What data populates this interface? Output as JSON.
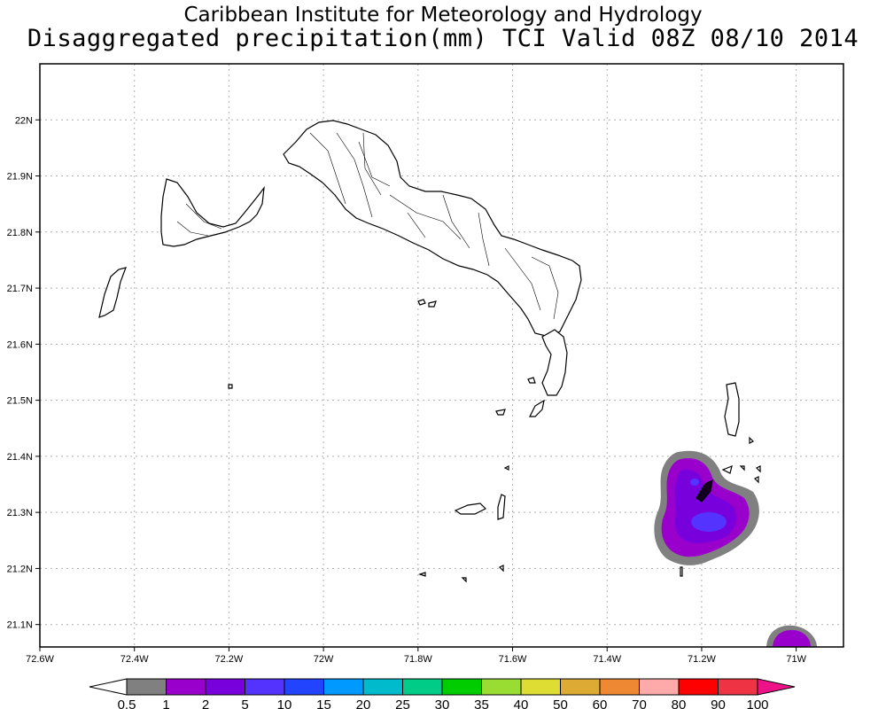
{
  "title": "Caribbean Institute for Meteorology and Hydrology",
  "subtitle": "Disaggregated precipitation(mm) TCI Valid 08Z 08/10 2014",
  "axes": {
    "lon_range": [
      -72.6,
      -70.9
    ],
    "lat_range": [
      21.06,
      22.1
    ],
    "x_ticks": [
      "72.6W",
      "72.4W",
      "72.2W",
      "72W",
      "71.8W",
      "71.6W",
      "71.4W",
      "71.2W",
      "71W"
    ],
    "y_ticks": [
      "21.1N",
      "21.2N",
      "21.3N",
      "21.4N",
      "21.5N",
      "21.6N",
      "21.7N",
      "21.8N",
      "21.9N",
      "22N"
    ],
    "grid": true
  },
  "colorbar": {
    "labels": [
      "0.5",
      "1",
      "2",
      "5",
      "10",
      "15",
      "20",
      "25",
      "30",
      "35",
      "40",
      "50",
      "60",
      "70",
      "80",
      "90",
      "100"
    ],
    "colors": [
      "#808080",
      "#9900cc",
      "#7700dd",
      "#5533ff",
      "#2244ff",
      "#0099ff",
      "#00bbcc",
      "#00cc88",
      "#00cc00",
      "#99dd33",
      "#dddd33",
      "#ddaa33",
      "#ee8833",
      "#ffaaaa",
      "#ff0000",
      "#ee3344"
    ],
    "below_color": "#ffffff",
    "above_color": "#ee1188"
  },
  "colors": {
    "frame": "#000000",
    "grid": "#b0b0b0",
    "coast": "#000000"
  }
}
